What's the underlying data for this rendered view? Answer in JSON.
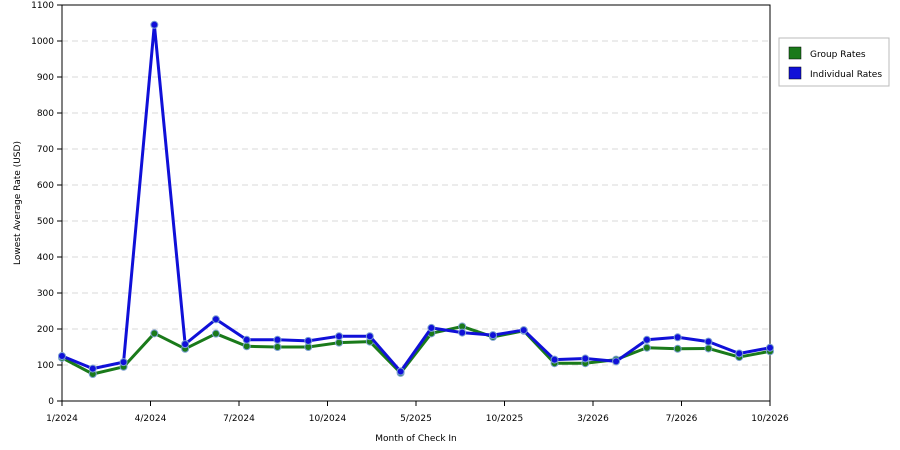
{
  "chart_data": {
    "type": "line",
    "xlabel": "Month of Check In",
    "ylabel": "Lowest Average Rate (USD)",
    "ylim": [
      0,
      1100
    ],
    "yticks": [
      0,
      100,
      200,
      300,
      400,
      500,
      600,
      700,
      800,
      900,
      1000,
      1100
    ],
    "x_tick_labels": [
      "1/2024",
      "4/2024",
      "7/2024",
      "10/2024",
      "5/2025",
      "10/2025",
      "3/2026",
      "7/2026",
      "10/2026"
    ],
    "grid": true,
    "legend_position": "right",
    "series": [
      {
        "name": "Group Rates",
        "color": "#1a7a1a",
        "values": [
          120,
          75,
          95,
          188,
          145,
          187,
          152,
          150,
          150,
          162,
          165,
          78,
          188,
          207,
          178,
          195,
          105,
          105,
          115,
          148,
          145,
          146,
          122,
          138
        ]
      },
      {
        "name": "Individual Rates",
        "color": "#1010d8",
        "values": [
          125,
          90,
          108,
          1045,
          158,
          227,
          170,
          170,
          167,
          180,
          180,
          82,
          203,
          190,
          183,
          197,
          115,
          118,
          110,
          170,
          177,
          165,
          132,
          148
        ]
      }
    ]
  }
}
